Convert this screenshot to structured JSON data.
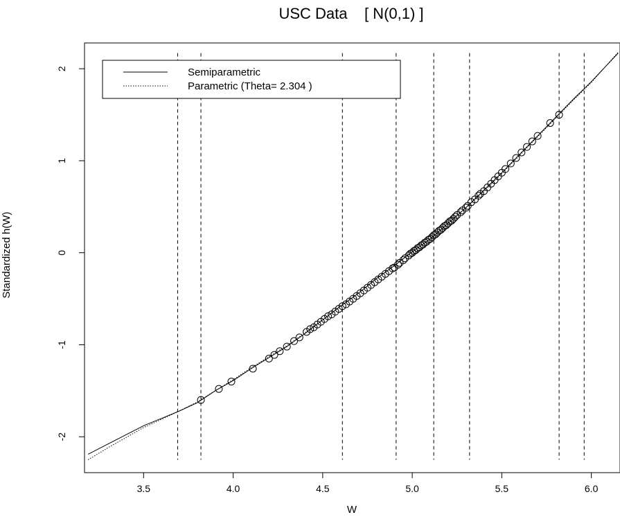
{
  "chart_data": {
    "type": "line",
    "title": "USC Data    [ N(0,1) ]",
    "xlabel": "W",
    "ylabel": "Standardized h(W)",
    "xlim": [
      3.17,
      6.16
    ],
    "ylim": [
      -2.39,
      2.28
    ],
    "x_ticks": [
      3.5,
      4.0,
      4.5,
      5.0,
      5.5,
      6.0
    ],
    "x_tick_labels": [
      "3.5",
      "4.0",
      "4.5",
      "5.0",
      "5.5",
      "6.0"
    ],
    "y_ticks": [
      -2,
      -1,
      0,
      1,
      2
    ],
    "y_tick_labels": [
      "-2",
      "-1",
      "0",
      "1",
      "2"
    ],
    "vlines": [
      3.69,
      3.82,
      4.61,
      4.91,
      5.12,
      5.32,
      5.82,
      5.96
    ],
    "vline_ymax": 2.17,
    "vline_ymin": -2.25,
    "legend": {
      "position": "top-left",
      "entries": [
        {
          "label": "Semiparametric",
          "style": "solid"
        },
        {
          "label": "Parametric (Theta= 2.304 )",
          "style": "dotted"
        }
      ]
    },
    "series": [
      {
        "name": "Semiparametric",
        "style": "solid",
        "x": [
          3.19,
          3.3,
          3.4,
          3.5,
          3.6,
          3.7,
          3.8,
          3.9,
          4.0,
          4.1,
          4.2,
          4.3,
          4.4,
          4.5,
          4.6,
          4.7,
          4.8,
          4.9,
          5.0,
          5.1,
          5.2,
          5.3,
          5.4,
          5.5,
          5.6,
          5.7,
          5.8,
          5.9,
          6.0,
          6.15
        ],
        "y": [
          -2.19,
          -2.08,
          -1.98,
          -1.88,
          -1.8,
          -1.72,
          -1.63,
          -1.5,
          -1.39,
          -1.26,
          -1.14,
          -1.02,
          -0.88,
          -0.73,
          -0.58,
          -0.44,
          -0.28,
          -0.14,
          0.01,
          0.15,
          0.32,
          0.49,
          0.68,
          0.87,
          1.07,
          1.27,
          1.47,
          1.67,
          1.86,
          2.17
        ]
      },
      {
        "name": "Parametric (Theta= 2.304 )",
        "style": "dotted",
        "x": [
          3.19,
          3.3,
          3.4,
          3.5,
          3.6,
          3.7,
          3.8,
          3.9,
          4.0,
          4.1,
          4.2,
          4.3,
          4.4,
          4.5,
          4.6,
          4.7,
          4.8,
          4.9,
          5.0,
          5.1,
          5.2,
          5.3,
          5.4,
          5.5,
          5.6,
          5.7,
          5.8,
          5.9,
          6.0,
          6.15
        ],
        "y": [
          -2.25,
          -2.12,
          -2.01,
          -1.9,
          -1.81,
          -1.72,
          -1.62,
          -1.5,
          -1.38,
          -1.25,
          -1.13,
          -1.01,
          -0.87,
          -0.73,
          -0.58,
          -0.44,
          -0.28,
          -0.14,
          0.01,
          0.15,
          0.32,
          0.49,
          0.67,
          0.86,
          1.06,
          1.26,
          1.46,
          1.66,
          1.85,
          2.18
        ]
      }
    ],
    "points": {
      "x": [
        3.82,
        3.92,
        3.99,
        4.11,
        4.2,
        4.23,
        4.26,
        4.3,
        4.34,
        4.37,
        4.41,
        4.43,
        4.45,
        4.47,
        4.49,
        4.51,
        4.53,
        4.55,
        4.57,
        4.59,
        4.61,
        4.63,
        4.65,
        4.67,
        4.69,
        4.71,
        4.73,
        4.75,
        4.77,
        4.79,
        4.81,
        4.83,
        4.85,
        4.87,
        4.89,
        4.9,
        4.92,
        4.93,
        4.95,
        4.96,
        4.98,
        4.99,
        5.0,
        5.01,
        5.02,
        5.03,
        5.04,
        5.05,
        5.06,
        5.07,
        5.08,
        5.09,
        5.1,
        5.11,
        5.12,
        5.13,
        5.14,
        5.15,
        5.16,
        5.17,
        5.18,
        5.19,
        5.2,
        5.21,
        5.22,
        5.23,
        5.24,
        5.25,
        5.27,
        5.28,
        5.3,
        5.31,
        5.33,
        5.35,
        5.37,
        5.38,
        5.4,
        5.42,
        5.44,
        5.46,
        5.48,
        5.5,
        5.52,
        5.55,
        5.58,
        5.61,
        5.64,
        5.67,
        5.7,
        5.77,
        5.82
      ],
      "y": [
        -1.6,
        -1.48,
        -1.4,
        -1.26,
        -1.15,
        -1.11,
        -1.07,
        -1.02,
        -0.96,
        -0.92,
        -0.86,
        -0.83,
        -0.81,
        -0.78,
        -0.75,
        -0.72,
        -0.69,
        -0.67,
        -0.64,
        -0.61,
        -0.58,
        -0.56,
        -0.53,
        -0.5,
        -0.47,
        -0.44,
        -0.41,
        -0.38,
        -0.35,
        -0.32,
        -0.29,
        -0.26,
        -0.23,
        -0.2,
        -0.17,
        -0.16,
        -0.13,
        -0.11,
        -0.08,
        -0.06,
        -0.03,
        -0.01,
        0.0,
        0.02,
        0.03,
        0.05,
        0.06,
        0.08,
        0.09,
        0.11,
        0.12,
        0.14,
        0.15,
        0.17,
        0.19,
        0.2,
        0.22,
        0.24,
        0.25,
        0.27,
        0.29,
        0.3,
        0.32,
        0.34,
        0.35,
        0.37,
        0.39,
        0.41,
        0.44,
        0.46,
        0.49,
        0.51,
        0.55,
        0.58,
        0.62,
        0.64,
        0.67,
        0.71,
        0.75,
        0.79,
        0.83,
        0.87,
        0.91,
        0.97,
        1.03,
        1.09,
        1.15,
        1.21,
        1.27,
        1.41,
        1.5
      ]
    }
  }
}
